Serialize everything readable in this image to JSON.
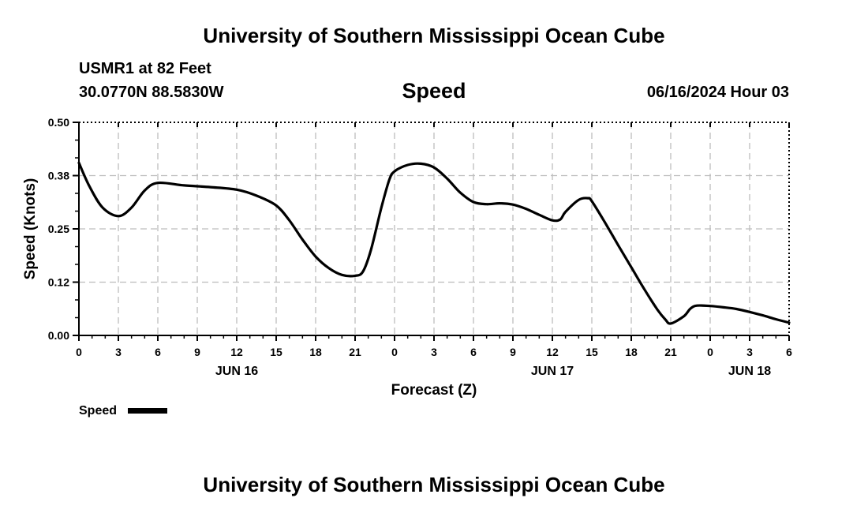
{
  "header": {
    "title_top": "University of Southern Mississippi Ocean Cube",
    "station": "USMR1 at 82 Feet",
    "coords": "30.0770N  88.5830W",
    "variable": "Speed",
    "timestamp": "06/16/2024 Hour 03"
  },
  "footer": {
    "title_bottom": "University of Southern Mississippi Ocean Cube"
  },
  "chart_data": {
    "type": "line",
    "title": "Speed",
    "xlabel": "Forecast (Z)",
    "ylabel": "Speed (Knots)",
    "ylim": [
      0,
      0.5
    ],
    "y_ticks": [
      "0.00",
      "0.12",
      "0.25",
      "0.38",
      "0.50"
    ],
    "x_range_hours": [
      0,
      54
    ],
    "x_tick_labels": [
      "0",
      "3",
      "6",
      "9",
      "12",
      "15",
      "18",
      "21",
      "0",
      "3",
      "6",
      "9",
      "12",
      "15",
      "18",
      "21",
      "0",
      "3",
      "6"
    ],
    "date_labels": [
      {
        "text": "JUN 16",
        "at_hour": 12
      },
      {
        "text": "JUN 17",
        "at_hour": 36
      },
      {
        "text": "JUN 18",
        "at_hour": 51
      }
    ],
    "grid": true,
    "legend": {
      "label": "Speed",
      "placement": "bottom-left"
    },
    "series": [
      {
        "name": "Speed",
        "color": "#000000",
        "x_hours": [
          0,
          0.8,
          1.8,
          3,
          4,
          5,
          6,
          8,
          10,
          12,
          13.5,
          15,
          16,
          17,
          18,
          19,
          20,
          21,
          21.6,
          22.2,
          23,
          23.6,
          24,
          25,
          26,
          27,
          28,
          29,
          30,
          31,
          32,
          33,
          34,
          35,
          36,
          36.6,
          37,
          38,
          38.7,
          39,
          40,
          41,
          42,
          43,
          44,
          44.6,
          45,
          46,
          46.5,
          47,
          48,
          49,
          50,
          51,
          52,
          53,
          54
        ],
        "y": [
          0.405,
          0.35,
          0.3,
          0.28,
          0.3,
          0.34,
          0.358,
          0.352,
          0.348,
          0.342,
          0.328,
          0.305,
          0.27,
          0.225,
          0.185,
          0.158,
          0.142,
          0.14,
          0.15,
          0.2,
          0.3,
          0.365,
          0.385,
          0.4,
          0.403,
          0.394,
          0.368,
          0.335,
          0.313,
          0.308,
          0.31,
          0.307,
          0.297,
          0.283,
          0.27,
          0.272,
          0.29,
          0.318,
          0.322,
          0.315,
          0.265,
          0.212,
          0.16,
          0.108,
          0.06,
          0.037,
          0.028,
          0.045,
          0.063,
          0.07,
          0.069,
          0.066,
          0.062,
          0.055,
          0.047,
          0.038,
          0.03
        ]
      }
    ]
  }
}
